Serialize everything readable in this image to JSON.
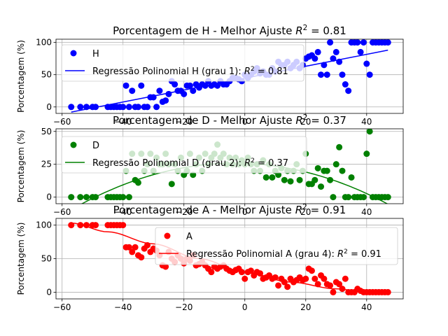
{
  "chart_data": [
    {
      "type": "scatter",
      "title": "Porcentagem de H - Melhor Ajuste R² = 0.81",
      "title_main": "Porcentagem de H - Melhor Ajuste ",
      "title_r2": " = 0.81",
      "xlabel": "",
      "ylabel": "Porcentagem (%)",
      "xlim": [
        -62,
        52
      ],
      "ylim": [
        -10,
        105
      ],
      "xticks": [
        -60,
        -40,
        -20,
        0,
        20,
        40
      ],
      "yticks": [
        0,
        50,
        100
      ],
      "grid": true,
      "legend_position": "upper-left",
      "color": "#0000ff",
      "series": [
        {
          "name": "H",
          "kind": "scatter",
          "x": [
            -57,
            -54,
            -52,
            -50,
            -49,
            -45,
            -44,
            -43,
            -42,
            -41,
            -40,
            -39,
            -38,
            -37,
            -36,
            -35,
            -34,
            -33,
            -32,
            -31,
            -30,
            -29,
            -28,
            -27,
            -26,
            -25,
            -24,
            -23,
            -22,
            -21,
            -20,
            -19,
            -18,
            -17,
            -16,
            -15,
            -14,
            -13,
            -12,
            -11,
            -10,
            -9,
            -8,
            -7,
            -6,
            -5,
            -4,
            -3,
            -2,
            -1,
            0,
            1,
            2,
            3,
            4,
            5,
            6,
            7,
            8,
            9,
            10,
            11,
            12,
            13,
            14,
            15,
            16,
            17,
            18,
            19,
            20,
            21,
            22,
            23,
            24,
            25,
            26,
            27,
            28,
            29,
            30,
            31,
            32,
            33,
            34,
            35,
            36,
            37,
            38,
            39,
            40,
            41,
            42,
            43,
            44,
            45,
            46,
            47
          ],
          "y": [
            0,
            0,
            0,
            0,
            0,
            0,
            0,
            0,
            0,
            0,
            0,
            33,
            0,
            25,
            0,
            0,
            33,
            0,
            0,
            15,
            15,
            0,
            25,
            8,
            10,
            20,
            40,
            35,
            25,
            25,
            20,
            33,
            33,
            25,
            35,
            30,
            35,
            33,
            40,
            33,
            35,
            33,
            40,
            35,
            35,
            40,
            45,
            45,
            43,
            40,
            50,
            45,
            50,
            55,
            60,
            52,
            55,
            50,
            50,
            60,
            55,
            70,
            65,
            65,
            70,
            60,
            65,
            70,
            60,
            65,
            75,
            78,
            80,
            75,
            85,
            50,
            65,
            50,
            100,
            75,
            85,
            70,
            50,
            35,
            25,
            100,
            100,
            100,
            85,
            100,
            67,
            50,
            100,
            100,
            100,
            100,
            100,
            100
          ]
        },
        {
          "name": "Regressão Polinomial H (grau 1): R² = 0.81",
          "name_main": "Regressão Polinomial H (grau 1): ",
          "name_r2": " = 0.81",
          "kind": "line",
          "x": [
            -57,
            47
          ],
          "y": [
            -8,
            88
          ]
        }
      ]
    },
    {
      "type": "scatter",
      "title": "Porcentagem de D - Melhor Ajuste R² = 0.37",
      "title_main": "Porcentagem de D - Melhor Ajuste ",
      "title_r2": " = 0.37",
      "xlabel": "",
      "ylabel": "Porcentagem (%)",
      "xlim": [
        -62,
        52
      ],
      "ylim": [
        -5,
        52
      ],
      "xticks": [
        -60,
        -40,
        -20,
        0,
        20,
        40
      ],
      "yticks": [
        0,
        25,
        50
      ],
      "grid": true,
      "legend_position": "upper-left",
      "color": "#008000",
      "series": [
        {
          "name": "D",
          "kind": "scatter",
          "x": [
            -57,
            -54,
            -52,
            -50,
            -49,
            -45,
            -44,
            -43,
            -42,
            -41,
            -40,
            -39,
            -38,
            -37,
            -36,
            -35,
            -34,
            -33,
            -32,
            -31,
            -30,
            -29,
            -28,
            -27,
            -26,
            -25,
            -24,
            -23,
            -22,
            -21,
            -20,
            -19,
            -18,
            -17,
            -16,
            -15,
            -14,
            -13,
            -12,
            -11,
            -10,
            -9,
            -8,
            -7,
            -6,
            -5,
            -4,
            -3,
            -2,
            -1,
            0,
            1,
            2,
            3,
            4,
            5,
            6,
            7,
            8,
            9,
            10,
            11,
            12,
            13,
            14,
            15,
            16,
            17,
            18,
            19,
            20,
            21,
            22,
            23,
            24,
            25,
            26,
            27,
            28,
            29,
            30,
            31,
            32,
            33,
            34,
            35,
            36,
            37,
            38,
            39,
            40,
            41,
            42,
            43,
            44,
            45,
            46,
            47
          ],
          "y": [
            0,
            0,
            0,
            0,
            0,
            0,
            0,
            0,
            0,
            0,
            0,
            20,
            0,
            33,
            13,
            11,
            33,
            20,
            25,
            33,
            20,
            30,
            25,
            25,
            33,
            25,
            10,
            25,
            20,
            30,
            17,
            20,
            33,
            17,
            25,
            30,
            20,
            33,
            25,
            30,
            33,
            40,
            30,
            33,
            25,
            30,
            25,
            30,
            25,
            28,
            25,
            30,
            25,
            20,
            25,
            20,
            28,
            15,
            25,
            15,
            20,
            17,
            22,
            13,
            20,
            12,
            20,
            25,
            13,
            20,
            33,
            10,
            10,
            13,
            22,
            8,
            20,
            20,
            13,
            0,
            25,
            38,
            20,
            0,
            0,
            15,
            0,
            0,
            0,
            0,
            33,
            50,
            0,
            0,
            0,
            0,
            0,
            0
          ]
        },
        {
          "name": "Regressão Polinomial D (grau 2): R² = 0.37",
          "name_main": "Regressão Polinomial D (grau 2): ",
          "name_r2": " = 0.37",
          "kind": "line",
          "coef_poly": [
            25.68,
            -0.0826,
            -0.01229
          ],
          "x_range": [
            -57,
            47
          ]
        }
      ]
    },
    {
      "type": "scatter",
      "title": "Porcentagem de A - Melhor Ajuste R² = 0.91",
      "title_main": "Porcentagem de A - Melhor Ajuste ",
      "title_r2": " = 0.91",
      "xlabel": "",
      "ylabel": "Porcentagem (%)",
      "xlim": [
        -62,
        52
      ],
      "ylim": [
        -10,
        110
      ],
      "xticks": [
        -60,
        -40,
        -20,
        0,
        20,
        40
      ],
      "yticks": [
        0,
        50,
        100
      ],
      "grid": true,
      "legend_position": "upper-center",
      "color": "#ff0000",
      "series": [
        {
          "name": "A",
          "kind": "scatter",
          "x": [
            -57,
            -54,
            -52,
            -50,
            -49,
            -45,
            -44,
            -43,
            -42,
            -41,
            -40,
            -39,
            -38,
            -37,
            -36,
            -35,
            -34,
            -33,
            -32,
            -31,
            -30,
            -29,
            -28,
            -27,
            -26,
            -25,
            -24,
            -23,
            -22,
            -21,
            -20,
            -19,
            -18,
            -17,
            -16,
            -15,
            -14,
            -13,
            -12,
            -11,
            -10,
            -9,
            -8,
            -7,
            -6,
            -5,
            -4,
            -3,
            -2,
            -1,
            0,
            1,
            2,
            3,
            4,
            5,
            6,
            7,
            8,
            9,
            10,
            11,
            12,
            13,
            14,
            15,
            16,
            17,
            18,
            19,
            20,
            21,
            22,
            23,
            24,
            25,
            26,
            27,
            28,
            29,
            30,
            31,
            32,
            33,
            34,
            35,
            36,
            37,
            38,
            39,
            40,
            41,
            42,
            43,
            44,
            45,
            46,
            47
          ],
          "y": [
            100,
            100,
            100,
            100,
            100,
            100,
            100,
            100,
            100,
            100,
            100,
            67,
            67,
            60,
            67,
            55,
            52,
            65,
            70,
            60,
            65,
            62,
            55,
            40,
            38,
            60,
            50,
            45,
            55,
            50,
            43,
            50,
            47,
            55,
            40,
            42,
            45,
            40,
            35,
            30,
            38,
            35,
            38,
            40,
            35,
            32,
            30,
            33,
            35,
            30,
            20,
            30,
            32,
            25,
            30,
            28,
            20,
            22,
            25,
            20,
            22,
            10,
            20,
            15,
            8,
            20,
            15,
            18,
            22,
            18,
            20,
            35,
            32,
            20,
            12,
            25,
            20,
            12,
            10,
            0,
            15,
            12,
            5,
            20,
            0,
            0,
            0,
            5,
            2,
            0,
            0,
            0,
            0,
            0,
            0,
            0,
            0,
            0
          ]
        },
        {
          "name": "Regressão Polinomial A (grau 4): R² = 0.91",
          "name_main": "Regressão Polinomial A (grau 4): ",
          "name_r2": " = 0.91",
          "kind": "line",
          "x": [
            -57,
            -45,
            -30,
            -15,
            0,
            15,
            30,
            40,
            47
          ],
          "y": [
            103,
            90,
            72,
            50,
            30,
            15,
            5,
            0,
            -2
          ]
        }
      ]
    }
  ]
}
